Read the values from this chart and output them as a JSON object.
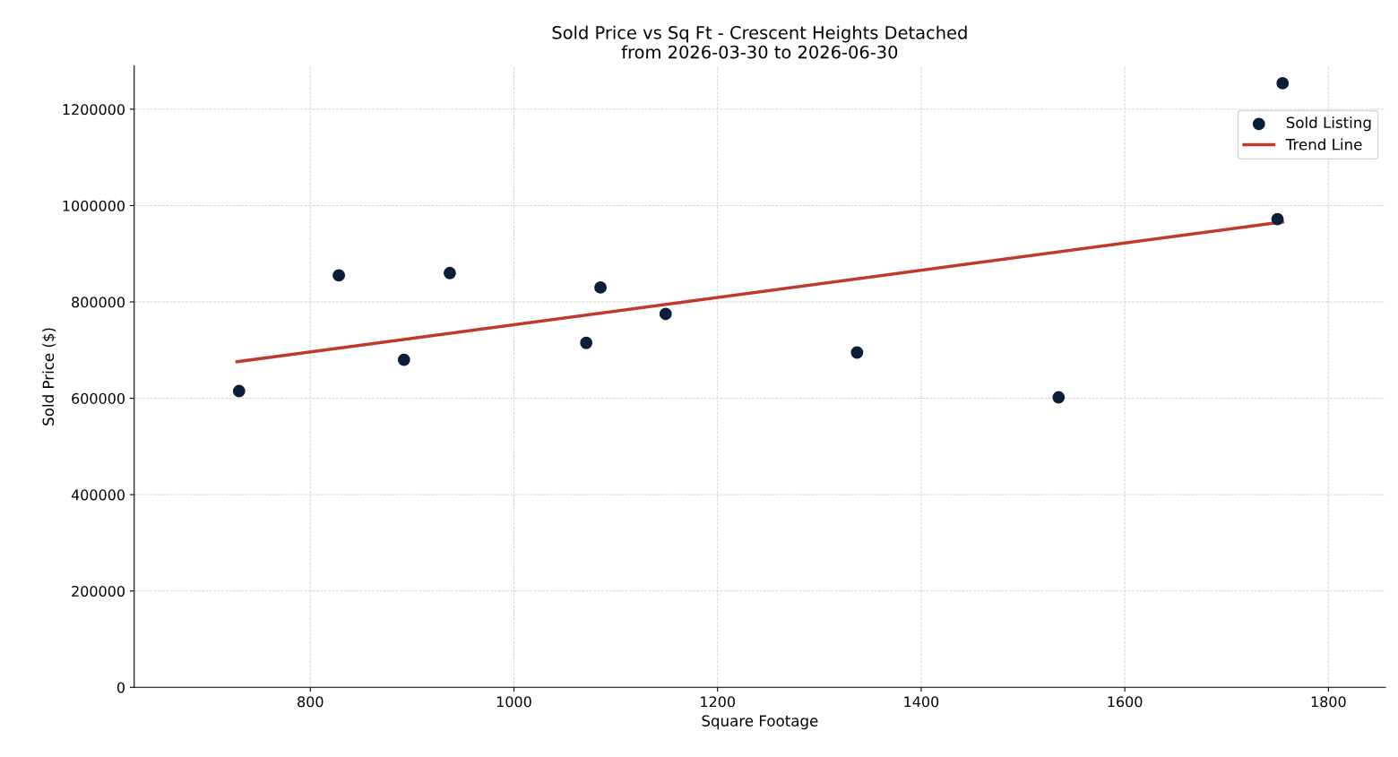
{
  "chart_data": {
    "type": "scatter",
    "title": "Sold Price vs Sq Ft - Crescent Heights Detached\nfrom 2026-03-30 to 2026-06-30",
    "xlabel": "Square Footage",
    "ylabel": "Sold Price ($)",
    "xlim": [
      627,
      1856
    ],
    "ylim": [
      0,
      1290000
    ],
    "xticks": [
      800,
      1000,
      1200,
      1400,
      1600,
      1800
    ],
    "yticks": [
      0,
      200000,
      400000,
      600000,
      800000,
      1000000,
      1200000
    ],
    "grid": true,
    "legend": "top right",
    "series": [
      {
        "name": "Sold Listing",
        "marker": "circle",
        "color": "#0b1f3a",
        "x": [
          730,
          828,
          892,
          937,
          1071,
          1085,
          1149,
          1337,
          1535,
          1750,
          1755
        ],
        "values": [
          615000,
          855000,
          680000,
          860000,
          715000,
          830000,
          775000,
          695000,
          602000,
          972000,
          1254000
        ]
      },
      {
        "name": "Trend Line",
        "type": "line",
        "line_style": "solid",
        "color": "#c0392b",
        "x": [
          728,
          1755
        ],
        "values": [
          676000,
          966000
        ]
      }
    ]
  }
}
